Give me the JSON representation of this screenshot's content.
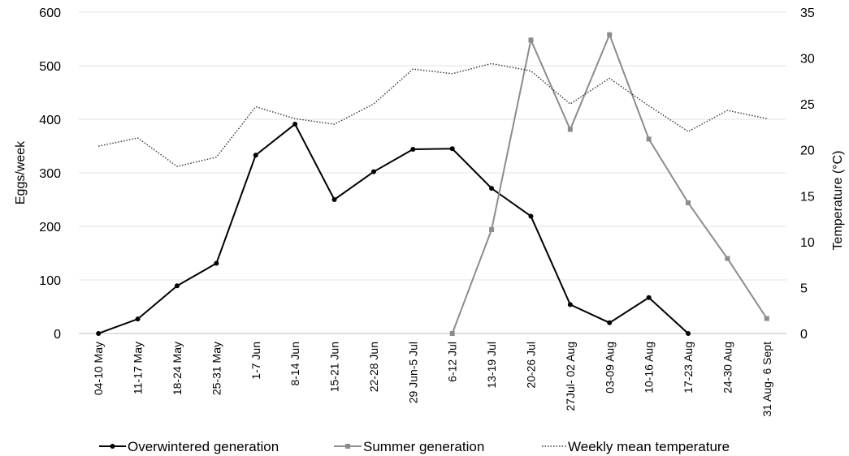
{
  "chart_data": {
    "type": "line",
    "categories": [
      "04-10 May",
      "11-17 May",
      "18-24 May",
      "25-31 May",
      "1-7 Jun",
      "8-14 Jun",
      "15-21 Jun",
      "22-28 Jun",
      "29 Jun-5 Jul",
      "6-12 Jul",
      "13-19 Jul",
      "20-26 Jul",
      "27Jul- 02 Aug",
      "03-09 Aug",
      "10-16 Aug",
      "17-23 Aug",
      "24-30 Aug",
      "31 Aug- 6 Sept"
    ],
    "ylabel": "Eggs/week",
    "y2label": "Temperature (°C)",
    "ylim": [
      0,
      600
    ],
    "y2lim": [
      0,
      35
    ],
    "yticks": [
      0,
      100,
      200,
      300,
      400,
      500,
      600
    ],
    "y2ticks": [
      0,
      5,
      10,
      15,
      20,
      25,
      30,
      35
    ],
    "grid": true,
    "legend_position": "bottom",
    "series": [
      {
        "name": "Overwintered generation",
        "axis": "left",
        "color": "#000000",
        "marker": "circle",
        "style": "solid",
        "values": [
          0,
          27,
          89,
          131,
          333,
          391,
          250,
          302,
          344,
          345,
          271,
          219,
          54,
          20,
          67,
          0,
          null,
          null
        ]
      },
      {
        "name": "Summer generation",
        "axis": "left",
        "color": "#8c8c8c",
        "marker": "square",
        "style": "solid",
        "values": [
          null,
          null,
          null,
          null,
          null,
          null,
          null,
          null,
          null,
          0,
          194,
          548,
          381,
          558,
          363,
          244,
          140,
          28
        ]
      },
      {
        "name": "Weekly mean temperature",
        "axis": "right",
        "color": "#333333",
        "marker": "none",
        "style": "dotted",
        "values": [
          20.4,
          21.3,
          18.2,
          19.2,
          24.7,
          23.4,
          22.8,
          25.0,
          28.8,
          28.3,
          29.4,
          28.6,
          25.0,
          27.8,
          24.8,
          22.0,
          24.3,
          23.4
        ]
      }
    ]
  }
}
